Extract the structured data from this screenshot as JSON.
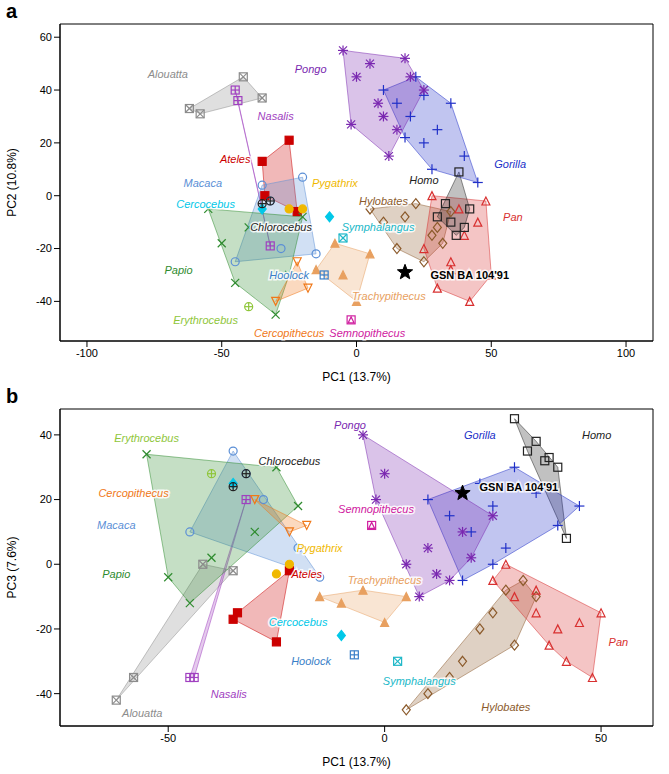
{
  "chart_data": [
    {
      "type": "scatter",
      "title": "a",
      "x_label": "PC1 (13.7%)",
      "y_label": "PC2 (10.8%)",
      "xlim": [
        -110,
        110
      ],
      "xticks": [
        -100,
        -50,
        0,
        50,
        100
      ],
      "ylim": [
        -55,
        65
      ],
      "yticks": [
        -40,
        -20,
        0,
        20,
        40,
        60
      ],
      "grid": false,
      "series": [
        {
          "name": "Alouatta",
          "color": "#8c8c8c",
          "marker": "square_x",
          "x": [
            -62,
            -58,
            -42,
            -35
          ],
          "values": [
            33,
            31,
            45,
            37
          ],
          "label_at": [
            -70,
            46
          ]
        },
        {
          "name": "Nasalis",
          "color": "#a040c0",
          "marker": "square_plus",
          "x": [
            -45,
            -44,
            -32
          ],
          "values": [
            40,
            36,
            -19
          ],
          "label_at": [
            -30,
            30
          ]
        },
        {
          "name": "Ateles",
          "color": "#cc0000",
          "marker": "filled_square",
          "x": [
            -35,
            -34,
            -25,
            -22
          ],
          "values": [
            13,
            0,
            21,
            -6
          ],
          "label_at": [
            -45,
            14
          ]
        },
        {
          "name": "Macaca",
          "color": "#5b8fd6",
          "marker": "circle",
          "x": [
            -45,
            -35,
            -32,
            -28,
            -20,
            -15
          ],
          "values": [
            -25,
            4,
            -2,
            -20,
            7,
            -22
          ],
          "label_at": [
            -57,
            5
          ]
        },
        {
          "name": "Cercocebus",
          "color": "#00c8e8",
          "marker": "filled_diamond",
          "x": [
            -35,
            -10
          ],
          "values": [
            -5,
            -8
          ],
          "label_at": [
            -56,
            -3
          ]
        },
        {
          "name": "Chlorocebus",
          "color": "#222222",
          "marker": "circle_plus",
          "x": [
            -32,
            -35
          ],
          "values": [
            -2,
            -3
          ],
          "label_at": [
            -28,
            -12
          ]
        },
        {
          "name": "Pygathrix",
          "color": "#f0b800",
          "marker": "filled_circle",
          "x": [
            -25,
            -20
          ],
          "values": [
            -5,
            -5
          ],
          "label_at": [
            -8,
            5
          ]
        },
        {
          "name": "Papio",
          "color": "#2e8b2e",
          "marker": "x",
          "x": [
            -55,
            -50,
            -45,
            -40,
            -30,
            -25,
            -20
          ],
          "values": [
            -5,
            -18,
            -33,
            -12,
            -45,
            -30,
            -8
          ],
          "label_at": [
            -66,
            -28
          ]
        },
        {
          "name": "Erythrocebus",
          "color": "#8fc63a",
          "marker": "circle_plus",
          "x": [
            -40
          ],
          "values": [
            -42
          ],
          "label_at": [
            -56,
            -47
          ]
        },
        {
          "name": "Cercopithecus",
          "color": "#f07818",
          "marker": "triangle_down",
          "x": [
            -30,
            -22,
            -18
          ],
          "values": [
            -40,
            -25,
            -35
          ],
          "label_at": [
            -25,
            -52
          ]
        },
        {
          "name": "Trachypithecus",
          "color": "#e8a060",
          "marker": "filled_triangle",
          "x": [
            -15,
            -5,
            0,
            5,
            -8
          ],
          "values": [
            -28,
            -30,
            -40,
            -22,
            -18
          ],
          "label_at": [
            12,
            -38
          ]
        },
        {
          "name": "Semnopithecus",
          "color": "#d020a0",
          "marker": "square_triangle",
          "x": [
            -2
          ],
          "values": [
            -47
          ],
          "label_at": [
            4,
            -52
          ]
        },
        {
          "name": "Hoolock",
          "color": "#3a7fc8",
          "marker": "square_plus",
          "x": [
            -12
          ],
          "values": [
            -30
          ],
          "label_at": [
            -25,
            -30
          ]
        },
        {
          "name": "Symphalangus",
          "color": "#20b8c8",
          "marker": "square_x",
          "x": [
            -5
          ],
          "values": [
            -16
          ],
          "label_at": [
            8,
            -12
          ]
        },
        {
          "name": "Hylobates",
          "color": "#8b5a2b",
          "marker": "diamond",
          "x": [
            5,
            10,
            15,
            18,
            22,
            25,
            28,
            30,
            32,
            35
          ],
          "values": [
            -5,
            -10,
            -20,
            -8,
            -3,
            -25,
            -15,
            -12,
            -18,
            -6
          ],
          "label_at": [
            10,
            -2
          ]
        },
        {
          "name": "Pan",
          "color": "#d83030",
          "marker": "triangle",
          "x": [
            25,
            30,
            35,
            38,
            40,
            42,
            45,
            48,
            50,
            35,
            28
          ],
          "values": [
            -20,
            -35,
            -28,
            -5,
            -15,
            -40,
            -10,
            -2,
            -30,
            -25,
            0
          ],
          "label_at": [
            58,
            -8
          ]
        },
        {
          "name": "Homo",
          "color": "#222222",
          "marker": "square",
          "x": [
            30,
            35,
            38,
            40,
            42,
            37,
            33
          ],
          "values": [
            -8,
            -10,
            9,
            -12,
            -5,
            -15,
            -3
          ],
          "label_at": [
            25,
            6
          ]
        },
        {
          "name": "Gorilla",
          "color": "#2030c8",
          "marker": "plus",
          "x": [
            10,
            15,
            20,
            22,
            25,
            28,
            30,
            35,
            40,
            45,
            18,
            25
          ],
          "values": [
            40,
            35,
            30,
            45,
            20,
            10,
            25,
            35,
            15,
            5,
            22,
            38
          ],
          "label_at": [
            57,
            12
          ]
        },
        {
          "name": "Pongo",
          "color": "#7a28b0",
          "marker": "asterisk",
          "x": [
            -5,
            0,
            5,
            8,
            10,
            15,
            20,
            25,
            12,
            18,
            -2
          ],
          "values": [
            55,
            45,
            50,
            35,
            30,
            25,
            45,
            40,
            15,
            52,
            27
          ],
          "label_at": [
            -17,
            48
          ]
        },
        {
          "name": "GSN BA 104'91",
          "color": "#000000",
          "marker": "star",
          "x": [
            18
          ],
          "values": [
            -29
          ],
          "label_at": [
            42,
            -30
          ]
        }
      ]
    },
    {
      "type": "scatter",
      "title": "b",
      "x_label": "PC1 (13.7%)",
      "y_label": "PC3 (7.6%)",
      "xlim": [
        -75,
        62
      ],
      "xticks": [
        -50,
        0,
        50
      ],
      "ylim": [
        -50,
        48
      ],
      "yticks": [
        -40,
        -20,
        0,
        20,
        40
      ],
      "grid": false,
      "series": [
        {
          "name": "Alouatta",
          "color": "#8c8c8c",
          "marker": "square_x",
          "x": [
            -62,
            -58,
            -42,
            -35
          ],
          "values": [
            -42,
            -35,
            0,
            -2
          ],
          "label_at": [
            -56,
            -46
          ]
        },
        {
          "name": "Nasalis",
          "color": "#a040c0",
          "marker": "square_plus",
          "x": [
            -45,
            -44,
            -32
          ],
          "values": [
            -35,
            -35,
            20
          ],
          "label_at": [
            -36,
            -40
          ]
        },
        {
          "name": "Ateles",
          "color": "#cc0000",
          "marker": "filled_square",
          "x": [
            -35,
            -34,
            -25,
            -22
          ],
          "values": [
            -17,
            -15,
            -24,
            -2
          ],
          "label_at": [
            -18,
            -3
          ]
        },
        {
          "name": "Macaca",
          "color": "#5b8fd6",
          "marker": "circle",
          "x": [
            -45,
            -35,
            -32,
            -28,
            -20,
            -15
          ],
          "values": [
            10,
            35,
            28,
            20,
            5,
            -4
          ],
          "label_at": [
            -62,
            12
          ]
        },
        {
          "name": "Cercocebus",
          "color": "#00c8e8",
          "marker": "filled_diamond",
          "x": [
            -35,
            -10
          ],
          "values": [
            25,
            -22
          ],
          "label_at": [
            -20,
            -18
          ]
        },
        {
          "name": "Chlorocebus",
          "color": "#222222",
          "marker": "circle_plus",
          "x": [
            -32,
            -35
          ],
          "values": [
            28,
            24
          ],
          "label_at": [
            -22,
            32
          ]
        },
        {
          "name": "Pygathrix",
          "color": "#f0b800",
          "marker": "filled_circle",
          "x": [
            -22,
            -25
          ],
          "values": [
            0,
            -3
          ],
          "label_at": [
            -15,
            5
          ]
        },
        {
          "name": "Papio",
          "color": "#2e8b2e",
          "marker": "x",
          "x": [
            -55,
            -50,
            -45,
            -40,
            -30,
            -25,
            -20
          ],
          "values": [
            34,
            -4,
            -12,
            2,
            10,
            30,
            18
          ],
          "label_at": [
            -62,
            -3
          ]
        },
        {
          "name": "Erythrocebus",
          "color": "#8fc63a",
          "marker": "circle_plus",
          "x": [
            -40
          ],
          "values": [
            28
          ],
          "label_at": [
            -55,
            39
          ]
        },
        {
          "name": "Cercopithecus",
          "color": "#f07818",
          "marker": "triangle_down",
          "x": [
            -30,
            -22,
            -18
          ],
          "values": [
            20,
            10,
            12
          ],
          "label_at": [
            -58,
            22
          ]
        },
        {
          "name": "Trachypithecus",
          "color": "#e8a060",
          "marker": "filled_triangle",
          "x": [
            -15,
            -5,
            0,
            5,
            -10
          ],
          "values": [
            -10,
            -8,
            -18,
            -10,
            -12
          ],
          "label_at": [
            0,
            -5
          ]
        },
        {
          "name": "Semnopithecus",
          "color": "#d020a0",
          "marker": "square_triangle",
          "x": [
            -3
          ],
          "values": [
            12
          ],
          "label_at": [
            -2,
            17
          ]
        },
        {
          "name": "Hoolock",
          "color": "#3a7fc8",
          "marker": "square_plus",
          "x": [
            -7
          ],
          "values": [
            -28
          ],
          "label_at": [
            -17,
            -30
          ]
        },
        {
          "name": "Symphalangus",
          "color": "#20b8c8",
          "marker": "square_x",
          "x": [
            3
          ],
          "values": [
            -30
          ],
          "label_at": [
            8,
            -36
          ]
        },
        {
          "name": "Hylobates",
          "color": "#8b5a2b",
          "marker": "diamond",
          "x": [
            5,
            10,
            15,
            18,
            22,
            25,
            28,
            30,
            32,
            35
          ],
          "values": [
            -45,
            -40,
            -35,
            -30,
            -20,
            -15,
            -8,
            -25,
            -5,
            -10
          ],
          "label_at": [
            28,
            -44
          ]
        },
        {
          "name": "Pan",
          "color": "#d83030",
          "marker": "triangle",
          "x": [
            25,
            30,
            35,
            38,
            40,
            42,
            45,
            48,
            50,
            35,
            28
          ],
          "values": [
            -5,
            -10,
            -15,
            -25,
            -20,
            -30,
            -18,
            -35,
            -15,
            -8,
            0
          ],
          "label_at": [
            54,
            -24
          ]
        },
        {
          "name": "Homo",
          "color": "#222222",
          "marker": "square",
          "x": [
            30,
            35,
            38,
            40,
            42,
            37,
            33
          ],
          "values": [
            45,
            38,
            33,
            30,
            8,
            32,
            35
          ],
          "label_at": [
            49,
            40
          ]
        },
        {
          "name": "Gorilla",
          "color": "#2030c8",
          "marker": "plus",
          "x": [
            10,
            15,
            20,
            22,
            25,
            28,
            30,
            35,
            40,
            45,
            18,
            25
          ],
          "values": [
            20,
            15,
            10,
            25,
            18,
            5,
            30,
            22,
            12,
            18,
            -5,
            0
          ],
          "label_at": [
            22,
            40
          ]
        },
        {
          "name": "Pongo",
          "color": "#7a28b0",
          "marker": "asterisk",
          "x": [
            -5,
            0,
            5,
            8,
            10,
            15,
            20,
            25,
            12,
            18,
            -2
          ],
          "values": [
            40,
            28,
            0,
            -10,
            5,
            -5,
            2,
            15,
            -3,
            10,
            20
          ],
          "label_at": [
            -8,
            43
          ]
        },
        {
          "name": "GSN BA 104'91",
          "color": "#000000",
          "marker": "star",
          "x": [
            18
          ],
          "values": [
            22
          ],
          "label_at": [
            31,
            24
          ]
        }
      ]
    }
  ]
}
